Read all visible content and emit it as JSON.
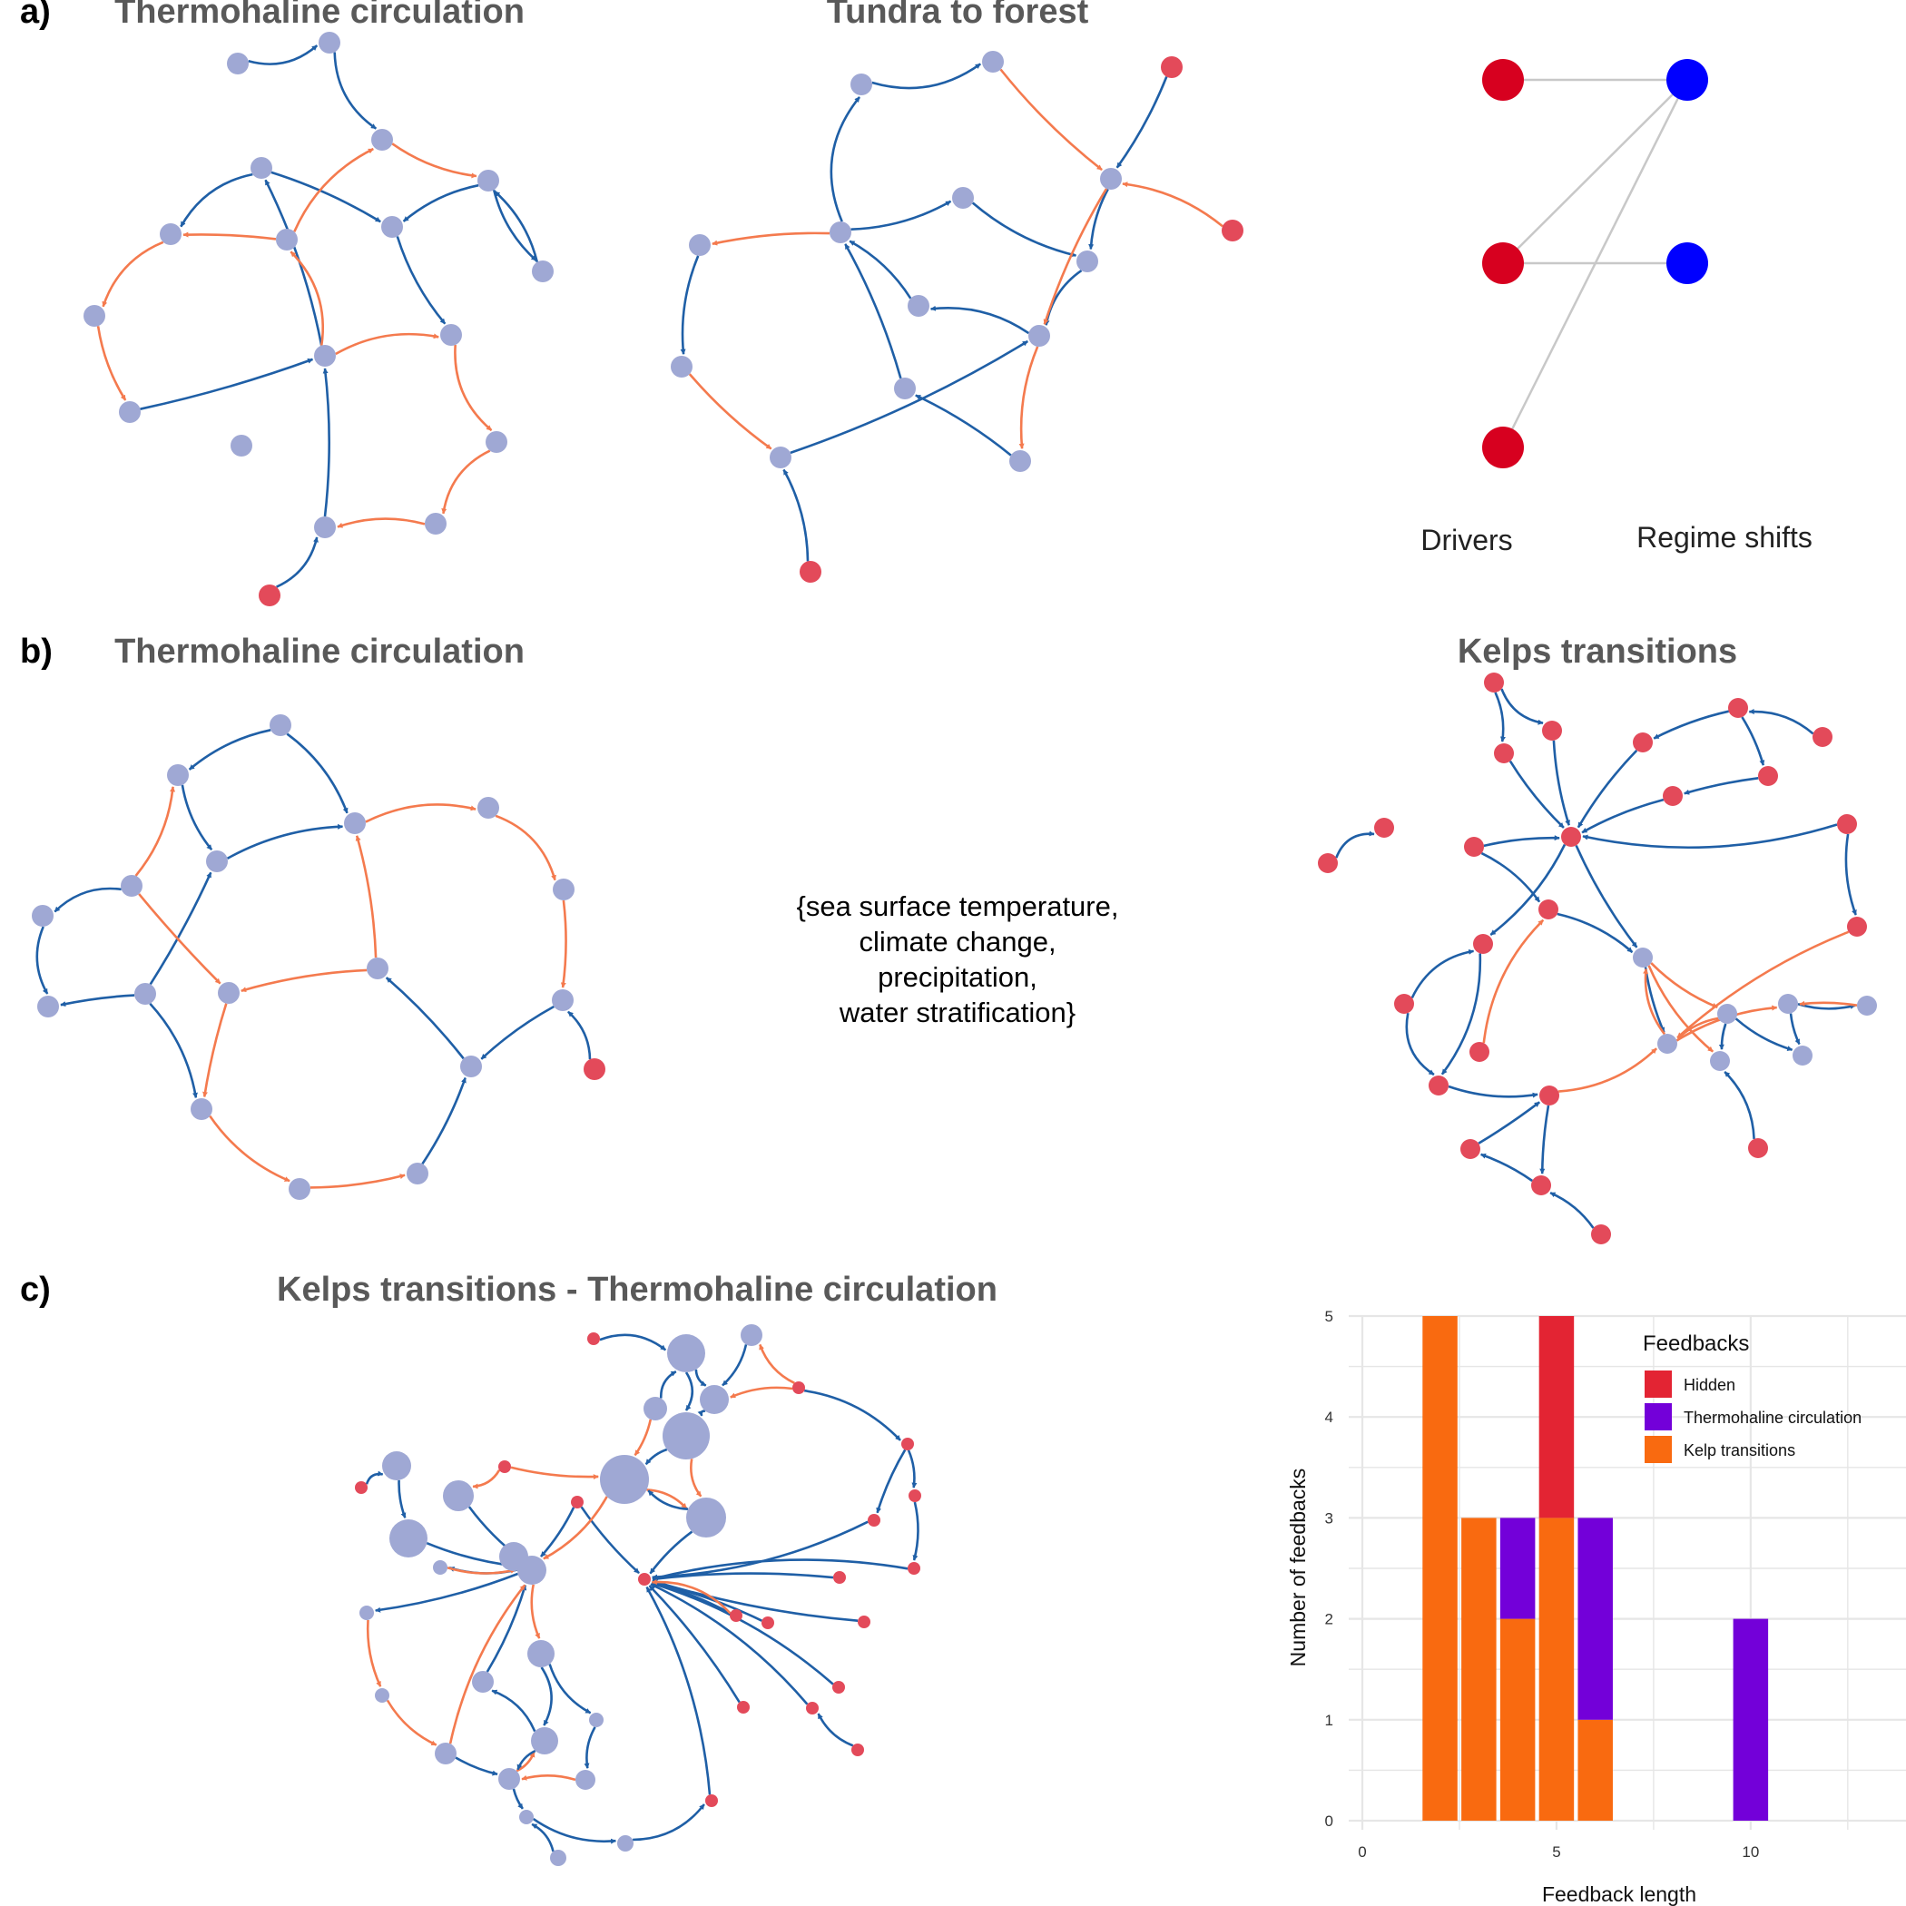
{
  "panel_a": {
    "letter": "a)",
    "titles": [
      "Thermohaline circulation",
      "Tundra to forest"
    ],
    "bipartite": {
      "drivers_label": "Drivers",
      "shifts_label": "Regime shifts"
    }
  },
  "panel_b": {
    "letter": "b)",
    "titles": [
      "Thermohaline circulation",
      "Kelps transitions"
    ],
    "shared_drivers": [
      "{sea surface temperature,",
      "climate change,",
      "precipitation,",
      "water stratification}"
    ]
  },
  "panel_c": {
    "letter": "c)",
    "title": "Kelps transitions - Thermohaline circulation"
  },
  "colors": {
    "node_variable": "#9fa8d4",
    "node_driver": "#e34a5a",
    "edge_positive": "#1f5fa6",
    "edge_negative": "#f47a4e",
    "bipartite_driver": "#d7001f",
    "bipartite_shift": "#0000ff",
    "hidden": "#e32433",
    "thermohaline": "#7300d9",
    "kelp": "#f96a10"
  },
  "chart_data": {
    "type": "bar",
    "stacked": true,
    "xlabel": "Feedback length",
    "ylabel": "Number of feedbacks",
    "xlim": [
      0,
      14
    ],
    "ylim": [
      0,
      5
    ],
    "xticks": [
      0,
      5,
      10
    ],
    "yticks": [
      0,
      1,
      2,
      3,
      4,
      5
    ],
    "legend_title": "Feedbacks",
    "legend_position": "top-right",
    "grid": true,
    "x": [
      2,
      3,
      4,
      5,
      6,
      10
    ],
    "series": [
      {
        "name": "Kelp transitions",
        "color": "#f96a10",
        "values": [
          5,
          3,
          2,
          3,
          1,
          0
        ]
      },
      {
        "name": "Thermohaline circulation",
        "color": "#7300d9",
        "values": [
          0,
          0,
          1,
          0,
          2,
          2
        ]
      },
      {
        "name": "Hidden",
        "color": "#e32433",
        "values": [
          0,
          0,
          0,
          2,
          0,
          0
        ]
      }
    ]
  }
}
